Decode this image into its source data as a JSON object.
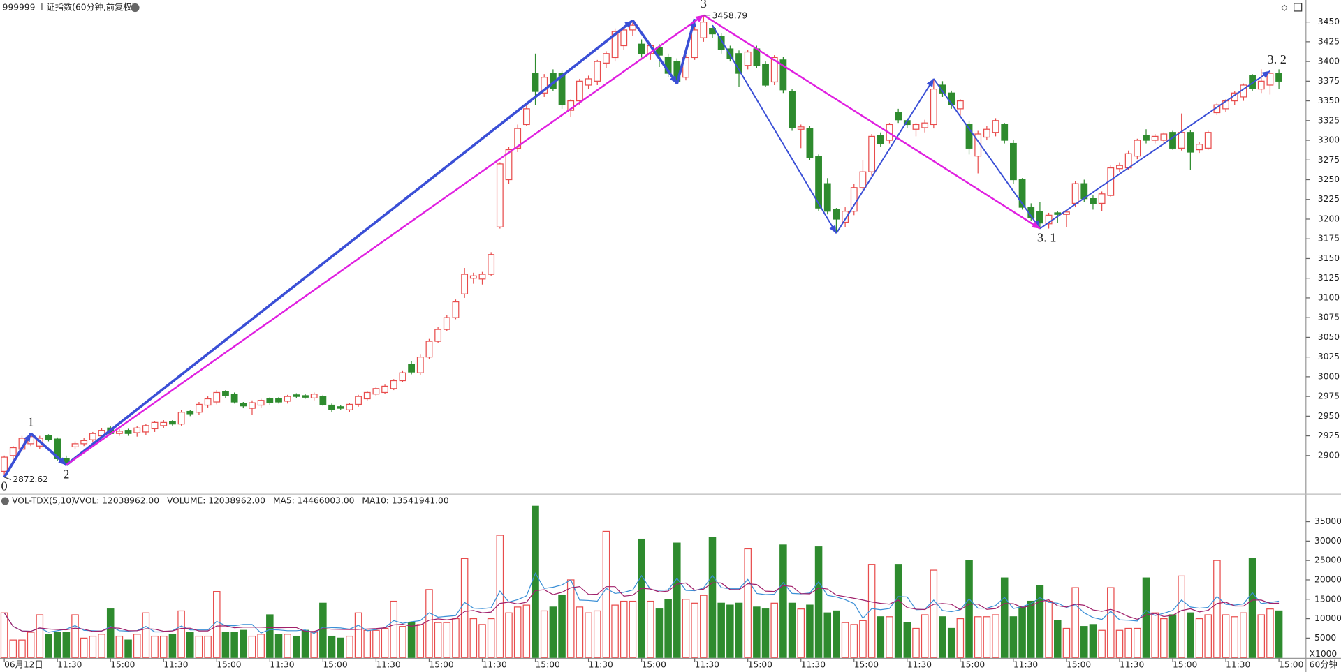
{
  "chart_data": {
    "type": "candlestick",
    "title": "999999 上证指数(60分钟,前复权)",
    "period": "60分钟",
    "up_color": "#e84c4c",
    "down_color": "#2e8b2e",
    "ylim": [
      2851,
      3478
    ],
    "yticks": [
      2900,
      2925,
      2950,
      2975,
      3000,
      3025,
      3050,
      3075,
      3100,
      3125,
      3150,
      3175,
      3200,
      3225,
      3250,
      3275,
      3300,
      3325,
      3350,
      3375,
      3400,
      3425,
      3450
    ],
    "xticks": [
      {
        "value": 0,
        "label": "06月12日"
      },
      {
        "value": 6,
        "label": "11:30"
      },
      {
        "value": 12,
        "label": "15:00"
      },
      {
        "value": 18,
        "label": "11:30"
      },
      {
        "value": 24,
        "label": "15:00"
      },
      {
        "value": 30,
        "label": "11:30"
      },
      {
        "value": 36,
        "label": "15:00"
      },
      {
        "value": 42,
        "label": "11:30"
      },
      {
        "value": 48,
        "label": "15:00"
      },
      {
        "value": 54,
        "label": "11:30"
      },
      {
        "value": 60,
        "label": "15:00"
      },
      {
        "value": 66,
        "label": "11:30"
      },
      {
        "value": 72,
        "label": "15:00"
      },
      {
        "value": 78,
        "label": "11:30"
      },
      {
        "value": 84,
        "label": "15:00"
      },
      {
        "value": 90,
        "label": "11:30"
      },
      {
        "value": 96,
        "label": "15:00"
      },
      {
        "value": 102,
        "label": "11:30"
      },
      {
        "value": 108,
        "label": "15:00"
      },
      {
        "value": 114,
        "label": "11:30"
      },
      {
        "value": 120,
        "label": "15:00"
      },
      {
        "value": 126,
        "label": "11:30"
      },
      {
        "value": 132,
        "label": "15:00"
      },
      {
        "value": 138,
        "label": "11:30"
      },
      {
        "value": 144,
        "label": "15:00"
      }
    ],
    "candles": [
      [
        2880,
        2900,
        2872.62,
        2898
      ],
      [
        2900,
        2912,
        2895,
        2910
      ],
      [
        2908,
        2925,
        2905,
        2922
      ],
      [
        2915,
        2928,
        2912,
        2924
      ],
      [
        2912,
        2925,
        2908,
        2922
      ],
      [
        2925,
        2927,
        2918,
        2920
      ],
      [
        2921,
        2923,
        2893,
        2896
      ],
      [
        2896,
        2900,
        2888,
        2891
      ],
      [
        2911,
        2918,
        2908,
        2915
      ],
      [
        2915,
        2922,
        2912,
        2919
      ],
      [
        2920,
        2930,
        2917,
        2928
      ],
      [
        2925,
        2935,
        2922,
        2932
      ],
      [
        2935,
        2937,
        2926,
        2928
      ],
      [
        2928,
        2934,
        2925,
        2931
      ],
      [
        2932,
        2934,
        2925,
        2928
      ],
      [
        2929,
        2937,
        2924,
        2935
      ],
      [
        2930,
        2940,
        2926,
        2938
      ],
      [
        2934,
        2944,
        2930,
        2942
      ],
      [
        2938,
        2945,
        2935,
        2942
      ],
      [
        2943,
        2945,
        2938,
        2940
      ],
      [
        2940,
        2958,
        2938,
        2955
      ],
      [
        2956,
        2958,
        2950,
        2953
      ],
      [
        2955,
        2968,
        2952,
        2965
      ],
      [
        2964,
        2975,
        2961,
        2972
      ],
      [
        2968,
        2983,
        2965,
        2980
      ],
      [
        2981,
        2983,
        2973,
        2976
      ],
      [
        2978,
        2980,
        2966,
        2968
      ],
      [
        2966,
        2968,
        2960,
        2963
      ],
      [
        2960,
        2970,
        2952,
        2967
      ],
      [
        2964,
        2972,
        2960,
        2970
      ],
      [
        2972,
        2974,
        2964,
        2967
      ],
      [
        2972,
        2974,
        2966,
        2968
      ],
      [
        2969,
        2977,
        2966,
        2975
      ],
      [
        2977,
        2979,
        2973,
        2975
      ],
      [
        2976,
        2978,
        2972,
        2974
      ],
      [
        2973,
        2980,
        2970,
        2978
      ],
      [
        2975,
        2977,
        2963,
        2965
      ],
      [
        2964,
        2966,
        2955,
        2958
      ],
      [
        2962,
        2964,
        2958,
        2960
      ],
      [
        2958,
        2967,
        2955,
        2965
      ],
      [
        2965,
        2977,
        2962,
        2975
      ],
      [
        2972,
        2982,
        2970,
        2980
      ],
      [
        2978,
        2987,
        2976,
        2985
      ],
      [
        2980,
        2990,
        2978,
        2988
      ],
      [
        2985,
        2997,
        2983,
        2995
      ],
      [
        2995,
        3008,
        2993,
        3005
      ],
      [
        3016,
        3020,
        3003,
        3006
      ],
      [
        3005,
        3028,
        3002,
        3025
      ],
      [
        3025,
        3048,
        3022,
        3045
      ],
      [
        3045,
        3063,
        3043,
        3060
      ],
      [
        3060,
        3078,
        3058,
        3075
      ],
      [
        3075,
        3098,
        3073,
        3095
      ],
      [
        3105,
        3138,
        3100,
        3130
      ],
      [
        3125,
        3132,
        3118,
        3128
      ],
      [
        3124,
        3133,
        3117,
        3130
      ],
      [
        3130,
        3158,
        3128,
        3155
      ],
      [
        3190,
        3272,
        3188,
        3270
      ],
      [
        3250,
        3292,
        3245,
        3288
      ],
      [
        3290,
        3320,
        3285,
        3315
      ],
      [
        3320,
        3345,
        3318,
        3340
      ],
      [
        3385,
        3410,
        3345,
        3362
      ],
      [
        3360,
        3384,
        3355,
        3380
      ],
      [
        3385,
        3390,
        3362,
        3366
      ],
      [
        3385,
        3388,
        3340,
        3345
      ],
      [
        3338,
        3352,
        3330,
        3350
      ],
      [
        3350,
        3378,
        3345,
        3375
      ],
      [
        3370,
        3382,
        3365,
        3378
      ],
      [
        3375,
        3402,
        3370,
        3400
      ],
      [
        3398,
        3413,
        3392,
        3410
      ],
      [
        3405,
        3442,
        3400,
        3438
      ],
      [
        3420,
        3445,
        3415,
        3440
      ],
      [
        3440,
        3452,
        3432,
        3446
      ],
      [
        3422,
        3428,
        3405,
        3410
      ],
      [
        3410,
        3424,
        3402,
        3420
      ],
      [
        3418,
        3422,
        3393,
        3408
      ],
      [
        3405,
        3410,
        3380,
        3385
      ],
      [
        3400,
        3404,
        3372,
        3375
      ],
      [
        3380,
        3408,
        3376,
        3405
      ],
      [
        3405,
        3444,
        3402,
        3440
      ],
      [
        3430,
        3458.79,
        3425,
        3450
      ],
      [
        3442,
        3446,
        3430,
        3435
      ],
      [
        3432,
        3436,
        3410,
        3415
      ],
      [
        3416,
        3420,
        3400,
        3404
      ],
      [
        3410,
        3414,
        3368,
        3385
      ],
      [
        3395,
        3415,
        3390,
        3412
      ],
      [
        3416,
        3420,
        3392,
        3395
      ],
      [
        3396,
        3400,
        3368,
        3370
      ],
      [
        3374,
        3408,
        3370,
        3405
      ],
      [
        3402,
        3406,
        3360,
        3364
      ],
      [
        3362,
        3365,
        3312,
        3316
      ],
      [
        3314,
        3320,
        3290,
        3317
      ],
      [
        3315,
        3318,
        3275,
        3278
      ],
      [
        3280,
        3282,
        3210,
        3214
      ],
      [
        3245,
        3252,
        3206,
        3210
      ],
      [
        3212,
        3214,
        3182,
        3200
      ],
      [
        3196,
        3215,
        3190,
        3210
      ],
      [
        3210,
        3245,
        3205,
        3240
      ],
      [
        3240,
        3275,
        3235,
        3260
      ],
      [
        3260,
        3308,
        3255,
        3305
      ],
      [
        3306,
        3310,
        3292,
        3296
      ],
      [
        3300,
        3322,
        3296,
        3320
      ],
      [
        3335,
        3340,
        3322,
        3326
      ],
      [
        3325,
        3328,
        3316,
        3320
      ],
      [
        3314,
        3322,
        3305,
        3320
      ],
      [
        3316,
        3326,
        3310,
        3322
      ],
      [
        3320,
        3378,
        3315,
        3365
      ],
      [
        3370,
        3375,
        3355,
        3360
      ],
      [
        3360,
        3363,
        3340,
        3345
      ],
      [
        3340,
        3352,
        3330,
        3350
      ],
      [
        3320,
        3325,
        3282,
        3290
      ],
      [
        3280,
        3312,
        3258,
        3308
      ],
      [
        3304,
        3318,
        3300,
        3314
      ],
      [
        3310,
        3328,
        3305,
        3325
      ],
      [
        3320,
        3322,
        3296,
        3300
      ],
      [
        3296,
        3300,
        3245,
        3250
      ],
      [
        3250,
        3252,
        3212,
        3215
      ],
      [
        3215,
        3220,
        3198,
        3202
      ],
      [
        3210,
        3222,
        3188,
        3195
      ],
      [
        3194,
        3208,
        3188,
        3205
      ],
      [
        3208,
        3210,
        3195,
        3206
      ],
      [
        3206,
        3210,
        3190,
        3209
      ],
      [
        3220,
        3248,
        3215,
        3245
      ],
      [
        3245,
        3250,
        3222,
        3226
      ],
      [
        3226,
        3230,
        3212,
        3220
      ],
      [
        3220,
        3235,
        3210,
        3232
      ],
      [
        3230,
        3268,
        3228,
        3265
      ],
      [
        3264,
        3272,
        3260,
        3268
      ],
      [
        3265,
        3287,
        3262,
        3283
      ],
      [
        3280,
        3302,
        3276,
        3300
      ],
      [
        3306,
        3314,
        3296,
        3300
      ],
      [
        3300,
        3308,
        3296,
        3305
      ],
      [
        3300,
        3310,
        3296,
        3308
      ],
      [
        3310,
        3312,
        3288,
        3290
      ],
      [
        3290,
        3334,
        3287,
        3310
      ],
      [
        3310,
        3313,
        3262,
        3285
      ],
      [
        3288,
        3298,
        3284,
        3295
      ],
      [
        3290,
        3312,
        3288,
        3310
      ],
      [
        3335,
        3348,
        3332,
        3345
      ],
      [
        3340,
        3352,
        3336,
        3350
      ],
      [
        3350,
        3362,
        3345,
        3360
      ],
      [
        3355,
        3372,
        3350,
        3370
      ],
      [
        3382,
        3384,
        3362,
        3366
      ],
      [
        3365,
        3390,
        3360,
        3375
      ],
      [
        3370,
        3388,
        3358,
        3385
      ],
      [
        3385,
        3390,
        3365,
        3375
      ]
    ],
    "annotations": [
      {
        "index": 0,
        "value": 2872.62
      },
      {
        "index": 79,
        "value": 3458.79
      }
    ],
    "waves": [
      {
        "label": "0",
        "index": 0,
        "price": 2872.62,
        "pos": "below"
      },
      {
        "label": "1",
        "index": 3,
        "price": 2928,
        "pos": "above"
      },
      {
        "label": "2",
        "index": 7,
        "price": 2888,
        "pos": "below"
      },
      {
        "label": "3",
        "index": 79,
        "price": 3458.79,
        "pos": "above"
      },
      {
        "label": "3. 1",
        "index": 117,
        "price": 3188,
        "pos": "below"
      },
      {
        "label": "3. 2",
        "index": 143,
        "price": 3388,
        "pos": "above"
      }
    ],
    "trendlines": [
      {
        "color": "#3a4fd6",
        "width": 3,
        "points": [
          [
            0,
            2872.62
          ],
          [
            3,
            2928
          ],
          [
            7,
            2888
          ],
          [
            71,
            3452
          ],
          [
            76,
            3372
          ],
          [
            78,
            3454
          ]
        ]
      },
      {
        "color": "#3a4fd6",
        "width": 1.6,
        "points": [
          [
            80,
            3446
          ],
          [
            94,
            3182
          ],
          [
            105,
            3378
          ],
          [
            117,
            3188
          ],
          [
            143,
            3388
          ]
        ]
      },
      {
        "color": "#e020e0",
        "width": 2,
        "points": [
          [
            7,
            2888
          ],
          [
            79,
            3458.79
          ],
          [
            117,
            3188
          ]
        ]
      }
    ],
    "volume": {
      "name": "VOL-TDX(5,10)",
      "unit": "X1000",
      "ylim": [
        0,
        39000
      ],
      "yticks": [
        5000,
        10000,
        15000,
        20000,
        25000,
        30000,
        35000
      ],
      "items": [
        {
          "text": "VVOL: 12038962.00",
          "color": "#222222"
        },
        {
          "text": "VOLUME: 12038962.00",
          "color": "#1f6fd0"
        },
        {
          "text": "MA5: 14466003.00",
          "color": "#1f6fd0"
        },
        {
          "text": "MA10: 13541941.00",
          "color": "#9a1f7a"
        }
      ],
      "ma5_color": "#3a8fd6",
      "ma10_color": "#a0206a",
      "values": [
        11500,
        4500,
        4500,
        6500,
        11000,
        6000,
        6500,
        6500,
        11000,
        5000,
        5500,
        6000,
        12500,
        5500,
        4500,
        6000,
        11500,
        5500,
        5500,
        6000,
        12000,
        6500,
        5500,
        5500,
        17000,
        6500,
        6500,
        7000,
        5500,
        6000,
        11000,
        6000,
        6000,
        5500,
        7000,
        6500,
        14000,
        5500,
        5000,
        5500,
        11500,
        7000,
        7000,
        7500,
        14500,
        8000,
        9000,
        8500,
        17500,
        9000,
        9000,
        10000,
        25500,
        10000,
        8500,
        10000,
        31500,
        11500,
        13000,
        13500,
        39000,
        12000,
        13000,
        16000,
        20000,
        13000,
        11500,
        12000,
        32500,
        13500,
        14500,
        14500,
        30500,
        14500,
        12500,
        15000,
        29500,
        15000,
        14000,
        16000,
        31000,
        14000,
        13500,
        14000,
        28000,
        13000,
        12500,
        14000,
        29000,
        14000,
        12500,
        13500,
        28500,
        11500,
        12000,
        9000,
        8500,
        9500,
        24000,
        10500,
        10500,
        24000,
        9000,
        7500,
        11000,
        22500,
        10500,
        7500,
        10000,
        25000,
        10500,
        10500,
        11000,
        20500,
        10500,
        13000,
        14500,
        18500,
        14500,
        9500,
        7500,
        18000,
        8000,
        8500,
        7000,
        18000,
        7000,
        7500,
        7500,
        20500,
        11500,
        10000,
        11000,
        21000,
        11500,
        10000,
        11000,
        25000,
        11000,
        10500,
        11500,
        25500,
        11000,
        12500,
        12000
      ]
    }
  }
}
